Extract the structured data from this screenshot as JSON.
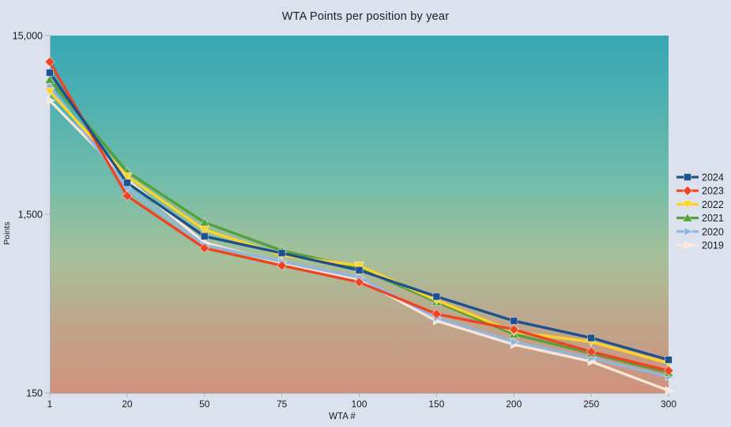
{
  "page": {
    "background_color": "#dbe2ee"
  },
  "chart_data": {
    "type": "line",
    "title": "WTA Points per position by year",
    "xlabel": "WTA #",
    "ylabel": "Points",
    "x_categories": [
      "1",
      "20",
      "50",
      "75",
      "100",
      "150",
      "200",
      "250",
      "300"
    ],
    "x_axis_spacing": "categorical-even",
    "y_scale": "log",
    "ylim": [
      150,
      15000
    ],
    "y_ticks": [
      {
        "label": "15,000",
        "value": 15000
      },
      {
        "label": "1,500",
        "value": 1500
      },
      {
        "label": "150",
        "value": 150
      }
    ],
    "grid": false,
    "legend_position": "right",
    "plot_background_gradient": [
      {
        "offset": 0,
        "color": "#38a8b5"
      },
      {
        "offset": 0.18,
        "color": "#4db0b0"
      },
      {
        "offset": 0.42,
        "color": "#74bdaa"
      },
      {
        "offset": 0.62,
        "color": "#a6c099"
      },
      {
        "offset": 0.82,
        "color": "#c0a48b"
      },
      {
        "offset": 1,
        "color": "#d0917d"
      }
    ],
    "axis_color": "#aab0bd",
    "text_color": "#1a1a1a",
    "series": [
      {
        "name": "2024",
        "color": "#1d528e",
        "marker": "square",
        "values": [
          9300,
          2250,
          1130,
          910,
          730,
          520,
          380,
          305,
          230
        ]
      },
      {
        "name": "2023",
        "color": "#ef4423",
        "marker": "diamond",
        "values": [
          10700,
          1900,
          970,
          775,
          625,
          415,
          340,
          255,
          200
        ]
      },
      {
        "name": "2022",
        "color": "#fdd32a",
        "marker": "triangle-down",
        "values": [
          7300,
          2450,
          1230,
          885,
          775,
          495,
          330,
          290,
          220
        ]
      },
      {
        "name": "2021",
        "color": "#55a03c",
        "marker": "triangle-up",
        "values": [
          8500,
          2600,
          1350,
          940,
          750,
          485,
          320,
          250,
          195
        ]
      },
      {
        "name": "2020",
        "color": "#92b5dc",
        "marker": "arrow-right",
        "values": [
          7800,
          2100,
          1010,
          815,
          665,
          395,
          290,
          235,
          185
        ]
      },
      {
        "name": "2019",
        "color": "#fae5d9",
        "marker": "arrow-right",
        "values": [
          6500,
          2350,
          1040,
          800,
          650,
          380,
          280,
          225,
          155
        ]
      }
    ]
  }
}
